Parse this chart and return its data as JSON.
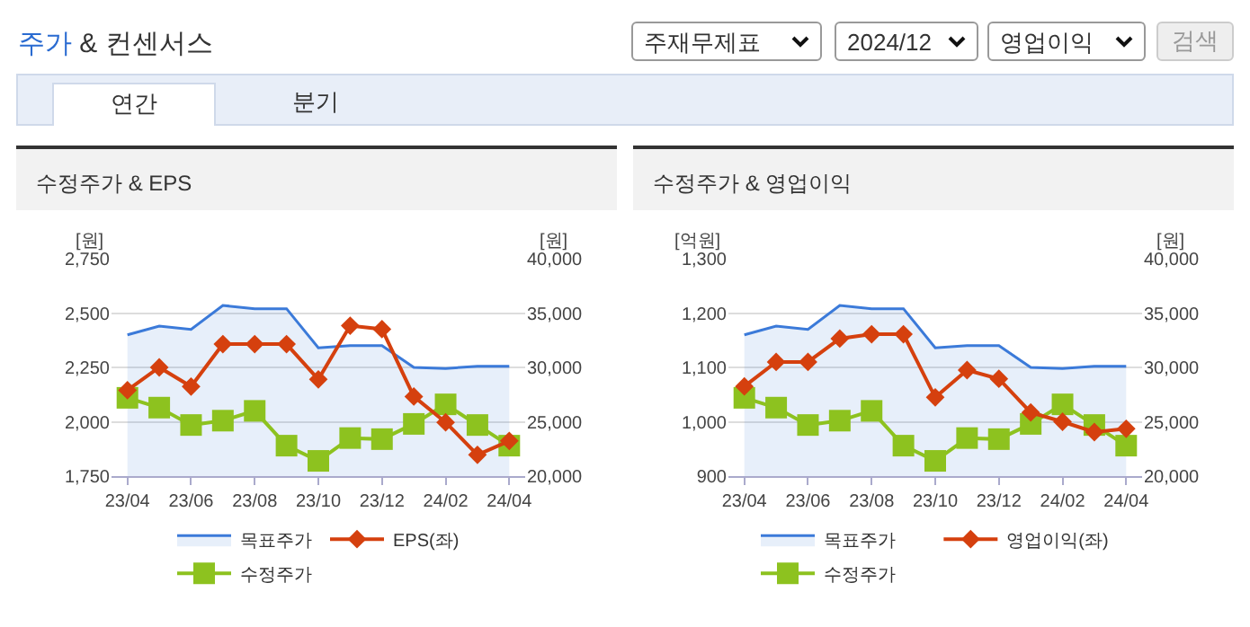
{
  "chart_data": [
    {
      "type": "other",
      "title": "주가 & 컨센서스",
      "annotations": [
        "주재무제표",
        "2024/12",
        "영업이익",
        "검색",
        "연간",
        "분기"
      ]
    },
    {
      "type": "line",
      "title": "수정주가 & EPS",
      "ylabel": "[원]",
      "y2label": "[원]",
      "categories": [
        "23/04",
        null,
        "23/06",
        null,
        "23/08",
        null,
        "23/10",
        null,
        "23/12",
        null,
        "24/02",
        null,
        "24/04"
      ],
      "ylim": [
        1750,
        2750
      ],
      "yticks": [
        {
          "value": 1750,
          "label": "1,750"
        },
        {
          "value": 2000,
          "label": "2,000"
        },
        {
          "value": 2250,
          "label": "2,250"
        },
        {
          "value": 2500,
          "label": "2,500"
        },
        {
          "value": 2750,
          "label": "2,750"
        }
      ],
      "y2lim": [
        20000,
        40000
      ],
      "y2ticks": [
        {
          "value": 20000,
          "label": "20,000"
        },
        {
          "value": 25000,
          "label": "25,000"
        },
        {
          "value": 30000,
          "label": "30,000"
        },
        {
          "value": 35000,
          "label": "35,000"
        },
        {
          "value": 40000,
          "label": "40,000"
        }
      ],
      "grid": "y",
      "legend": "bottom",
      "series": [
        {
          "name": "목표주가",
          "type": "area",
          "axis": "y2",
          "color": "#3b7ad9",
          "marker": "none",
          "values": [
            33000,
            33800,
            33500,
            35700,
            35400,
            35400,
            31800,
            32000,
            32000,
            30000,
            29900,
            30100,
            30100
          ]
        },
        {
          "name": "EPS(좌)",
          "type": "line",
          "color": "#d5400e",
          "marker": "diamond",
          "values": [
            2145,
            2250,
            2162,
            2357,
            2357,
            2357,
            2195,
            2442,
            2426,
            2116,
            1997,
            1848,
            1912
          ]
        },
        {
          "name": "수정주가",
          "type": "line",
          "axis": "y2",
          "color": "#8dc21f",
          "marker": "square",
          "values": [
            27200,
            26300,
            24700,
            25100,
            26000,
            22800,
            21400,
            23500,
            23400,
            24800,
            26600,
            24700,
            22800
          ]
        }
      ]
    },
    {
      "type": "line",
      "title": "수정주가 & 영업이익",
      "ylabel": "[억원]",
      "y2label": "[원]",
      "categories": [
        "23/04",
        null,
        "23/06",
        null,
        "23/08",
        null,
        "23/10",
        null,
        "23/12",
        null,
        "24/02",
        null,
        "24/04"
      ],
      "ylim": [
        900,
        1300
      ],
      "yticks": [
        900,
        {
          "value": 1000,
          "label": "1,000"
        },
        {
          "value": 1100,
          "label": "1,100"
        },
        {
          "value": 1200,
          "label": "1,200"
        },
        {
          "value": 1300,
          "label": "1,300"
        }
      ],
      "y2lim": [
        20000,
        40000
      ],
      "y2ticks": [
        {
          "value": 20000,
          "label": "20,000"
        },
        {
          "value": 25000,
          "label": "25,000"
        },
        {
          "value": 30000,
          "label": "30,000"
        },
        {
          "value": 35000,
          "label": "35,000"
        },
        {
          "value": 40000,
          "label": "40,000"
        }
      ],
      "grid": "y",
      "legend": "bottom",
      "series": [
        {
          "name": "목표주가",
          "type": "area",
          "axis": "y2",
          "color": "#3b7ad9",
          "marker": "none",
          "values": [
            33000,
            33800,
            33500,
            35700,
            35400,
            35400,
            31800,
            32000,
            32000,
            30000,
            29900,
            30100,
            30100
          ]
        },
        {
          "name": "영업이익(좌)",
          "type": "line",
          "color": "#d5400e",
          "marker": "diamond",
          "values": [
            1065,
            1110,
            1110,
            1153,
            1161,
            1161,
            1045,
            1095,
            1079,
            1017,
            1000,
            981,
            987
          ]
        },
        {
          "name": "수정주가",
          "type": "line",
          "axis": "y2",
          "color": "#8dc21f",
          "marker": "square",
          "values": [
            27200,
            26300,
            24700,
            25100,
            26000,
            22800,
            21400,
            23500,
            23400,
            24800,
            26600,
            24700,
            22800
          ]
        }
      ]
    }
  ]
}
